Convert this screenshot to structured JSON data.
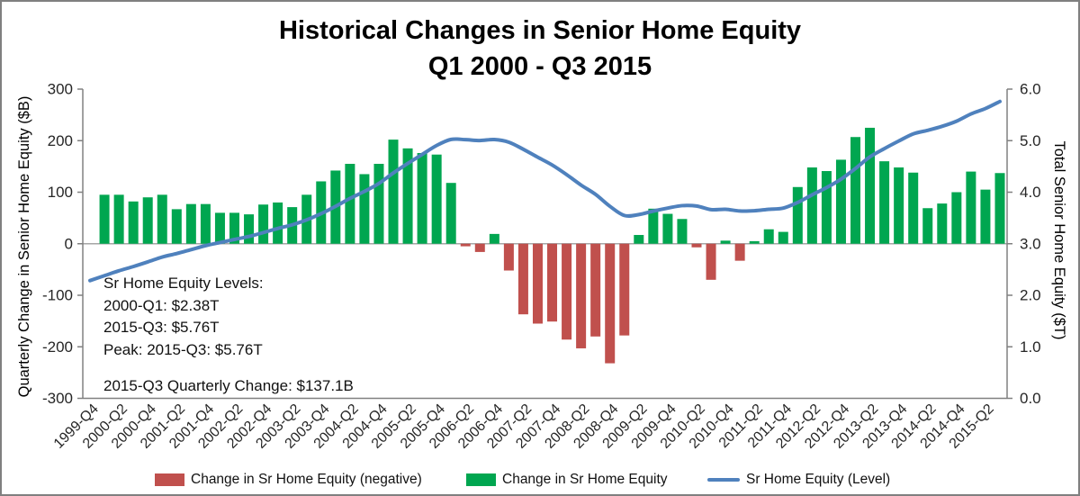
{
  "figure": {
    "title_line1": "Historical Changes in Senior Home Equity",
    "title_line2": "Q1 2000 - Q3 2015"
  },
  "annotation": {
    "line1": "Sr Home Equity Levels:",
    "line2": "2000-Q1: $2.38T",
    "line3": "2015-Q3: $5.76T",
    "line4": "Peak: 2015-Q3: $5.76T",
    "line5": "2015-Q3 Quarterly Change: $137.1B"
  },
  "legend": {
    "negative": "Change in Sr Home Equity (negative)",
    "positive": "Change in Sr Home Equity",
    "level": "Sr Home Equity (Level)"
  },
  "colors": {
    "positive_bar": "#00A650",
    "negative_bar": "#C0504D",
    "line": "#4F81BD",
    "zero_line": "#A6A6A6",
    "axis": "#808080",
    "text": "#262626",
    "axis_title": "#000000",
    "figure_border": "#808080"
  },
  "chart_data": {
    "type": "bar",
    "subtype": "bar+line combo, dual y-axes",
    "title": "Historical Changes in Senior Home Equity Q1 2000 - Q3 2015",
    "grid": false,
    "legend_position": "bottom",
    "x_label_every": 2,
    "categories": [
      "1999-Q4",
      "2000-Q1",
      "2000-Q2",
      "2000-Q3",
      "2000-Q4",
      "2001-Q1",
      "2001-Q2",
      "2001-Q3",
      "2001-Q4",
      "2002-Q1",
      "2002-Q2",
      "2002-Q3",
      "2002-Q4",
      "2003-Q1",
      "2003-Q2",
      "2003-Q3",
      "2003-Q4",
      "2004-Q1",
      "2004-Q2",
      "2004-Q3",
      "2004-Q4",
      "2005-Q1",
      "2005-Q2",
      "2005-Q3",
      "2005-Q4",
      "2006-Q1",
      "2006-Q2",
      "2006-Q3",
      "2006-Q4",
      "2007-Q1",
      "2007-Q2",
      "2007-Q3",
      "2007-Q4",
      "2008-Q1",
      "2008-Q2",
      "2008-Q3",
      "2008-Q4",
      "2009-Q1",
      "2009-Q2",
      "2009-Q3",
      "2009-Q4",
      "2010-Q1",
      "2010-Q2",
      "2010-Q3",
      "2010-Q4",
      "2011-Q1",
      "2011-Q2",
      "2011-Q3",
      "2011-Q4",
      "2012-Q1",
      "2012-Q2",
      "2012-Q3",
      "2012-Q4",
      "2013-Q1",
      "2013-Q2",
      "2013-Q3",
      "2013-Q4",
      "2014-Q1",
      "2014-Q2",
      "2014-Q3",
      "2014-Q4",
      "2015-Q1",
      "2015-Q2",
      "2015-Q3"
    ],
    "bar_series": {
      "name": "Change in Sr Home Equity",
      "unit": "$B",
      "values": [
        null,
        95,
        95,
        82,
        90,
        95,
        67,
        77,
        77,
        60,
        60,
        57,
        76,
        80,
        71,
        95,
        121,
        142,
        155,
        135,
        155,
        202,
        185,
        176,
        173,
        118,
        -5,
        -16,
        19,
        -52,
        -137,
        -155,
        -151,
        -186,
        -203,
        -180,
        -232,
        -178,
        17,
        68,
        58,
        48,
        -7,
        -70,
        6,
        -33,
        5,
        28,
        23,
        110,
        148,
        141,
        163,
        207,
        225,
        160,
        148,
        138,
        69,
        78,
        100,
        140,
        105,
        137.1
      ]
    },
    "line_series": {
      "name": "Sr Home Equity (Level)",
      "unit": "$T",
      "values": [
        2.285,
        2.38,
        2.475,
        2.557,
        2.647,
        2.742,
        2.809,
        2.886,
        2.963,
        3.023,
        3.083,
        3.14,
        3.216,
        3.296,
        3.367,
        3.462,
        3.583,
        3.725,
        3.88,
        4.015,
        4.17,
        4.372,
        4.557,
        4.733,
        4.906,
        5.024,
        5.019,
        5.003,
        5.022,
        4.97,
        4.833,
        4.678,
        4.527,
        4.341,
        4.138,
        3.958,
        3.726,
        3.548,
        3.565,
        3.633,
        3.691,
        3.739,
        3.732,
        3.662,
        3.668,
        3.635,
        3.64,
        3.668,
        3.691,
        3.801,
        3.949,
        4.09,
        4.253,
        4.46,
        4.685,
        4.845,
        4.993,
        5.131,
        5.2,
        5.278,
        5.378,
        5.518,
        5.623,
        5.76
      ]
    },
    "left_axis": {
      "label": "Quarterly Change in Senior Home Equity ($B)",
      "range": [
        -300,
        300
      ],
      "ticks": [
        300,
        200,
        100,
        0,
        -100,
        -200,
        -300
      ],
      "tick_labels": [
        "300",
        "200",
        "100",
        "0",
        "-100",
        "-200",
        "-300"
      ]
    },
    "right_axis": {
      "label": "Total Senior Home Equity ($T)",
      "range": [
        0,
        6
      ],
      "ticks": [
        6,
        5,
        4,
        3,
        2,
        1,
        0
      ],
      "tick_labels": [
        "6.0",
        "5.0",
        "4.0",
        "3.0",
        "2.0",
        "1.0",
        "0.0"
      ]
    }
  }
}
